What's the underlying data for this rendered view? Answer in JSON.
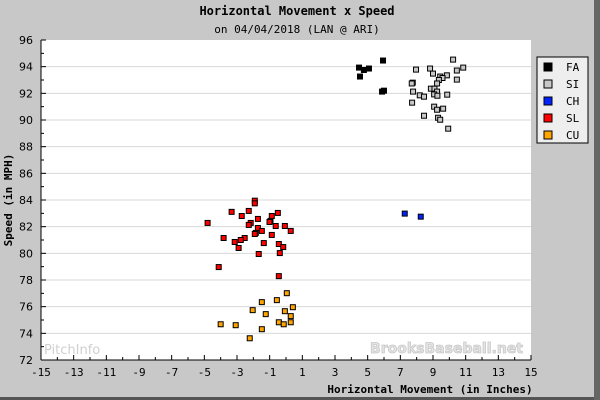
{
  "chart_data": {
    "type": "scatter",
    "title": "Horizontal Movement x Speed",
    "subtitle": "on 04/04/2018 (LAN @ ARI)",
    "xlabel": "Horizontal Movement (in Inches)",
    "ylabel": "Speed (in MPH)",
    "xlim": [
      -15,
      15
    ],
    "ylim": [
      72,
      96
    ],
    "xticks": [
      -15,
      -13,
      -11,
      -9,
      -7,
      -5,
      -3,
      -1,
      1,
      3,
      5,
      7,
      9,
      11,
      13,
      15
    ],
    "yticks": [
      72,
      74,
      76,
      78,
      80,
      82,
      84,
      86,
      88,
      90,
      92,
      94,
      96
    ],
    "grid": "horizontal",
    "legend_position": "right",
    "watermarks": [
      "PitchInfo",
      "BrooksBaseball.net"
    ],
    "series": [
      {
        "name": "FA",
        "color": "#000000",
        "points": [
          [
            4.47,
            93.93
          ],
          [
            4.77,
            93.75
          ],
          [
            5.08,
            93.86
          ],
          [
            4.53,
            93.26
          ],
          [
            5.94,
            94.46
          ],
          [
            5.88,
            92.13
          ],
          [
            6.0,
            92.2
          ]
        ]
      },
      {
        "name": "SI",
        "color": "#c8c8c8",
        "points": [
          [
            10.23,
            94.53
          ],
          [
            10.85,
            93.93
          ],
          [
            10.46,
            93.71
          ],
          [
            8.82,
            93.86
          ],
          [
            7.96,
            93.78
          ],
          [
            9.0,
            93.48
          ],
          [
            9.44,
            93.26
          ],
          [
            9.85,
            93.35
          ],
          [
            9.58,
            93.15
          ],
          [
            9.36,
            93.0
          ],
          [
            10.46,
            93.03
          ],
          [
            7.76,
            92.8
          ],
          [
            7.7,
            92.74
          ],
          [
            9.25,
            92.74
          ],
          [
            8.87,
            92.35
          ],
          [
            9.09,
            92.35
          ],
          [
            7.78,
            92.13
          ],
          [
            9.25,
            92.13
          ],
          [
            8.19,
            91.85
          ],
          [
            8.45,
            91.75
          ],
          [
            9.07,
            91.92
          ],
          [
            9.27,
            91.82
          ],
          [
            9.87,
            91.9
          ],
          [
            7.72,
            91.3
          ],
          [
            9.07,
            91.0
          ],
          [
            9.25,
            90.77
          ],
          [
            9.62,
            90.85
          ],
          [
            8.45,
            90.32
          ],
          [
            9.31,
            90.17
          ],
          [
            9.44,
            90.02
          ],
          [
            9.93,
            89.35
          ]
        ]
      },
      {
        "name": "CH",
        "color": "#0022ff",
        "points": [
          [
            7.27,
            82.98
          ],
          [
            8.25,
            82.75
          ]
        ]
      },
      {
        "name": "SL",
        "color": "#ff0000",
        "points": [
          [
            -1.91,
            83.95
          ],
          [
            -1.91,
            83.75
          ],
          [
            -3.33,
            83.11
          ],
          [
            -2.28,
            83.18
          ],
          [
            -2.71,
            82.8
          ],
          [
            -0.5,
            83.03
          ],
          [
            -0.87,
            82.8
          ],
          [
            -1.72,
            82.58
          ],
          [
            -0.95,
            82.43
          ],
          [
            -1.01,
            82.35
          ],
          [
            -2.16,
            82.28
          ],
          [
            -2.28,
            82.13
          ],
          [
            -0.63,
            82.05
          ],
          [
            -0.07,
            82.05
          ],
          [
            -4.8,
            82.28
          ],
          [
            -1.72,
            81.9
          ],
          [
            -1.48,
            81.68
          ],
          [
            0.29,
            81.68
          ],
          [
            -1.85,
            81.53
          ],
          [
            -1.91,
            81.45
          ],
          [
            -0.87,
            81.38
          ],
          [
            -3.82,
            81.15
          ],
          [
            -2.53,
            81.15
          ],
          [
            -2.77,
            81.0
          ],
          [
            -3.14,
            80.85
          ],
          [
            -1.36,
            80.77
          ],
          [
            -0.44,
            80.7
          ],
          [
            -2.9,
            80.4
          ],
          [
            -0.17,
            80.47
          ],
          [
            -1.67,
            79.95
          ],
          [
            -0.38,
            80.02
          ],
          [
            -4.12,
            78.97
          ],
          [
            -0.44,
            78.29
          ]
        ]
      },
      {
        "name": "CU",
        "color": "#ffa500",
        "points": [
          [
            0.05,
            77.01
          ],
          [
            -1.48,
            76.34
          ],
          [
            -0.56,
            76.49
          ],
          [
            0.42,
            75.96
          ],
          [
            -2.04,
            75.74
          ],
          [
            -1.24,
            75.44
          ],
          [
            -0.07,
            75.66
          ],
          [
            0.29,
            75.29
          ],
          [
            -4.0,
            74.68
          ],
          [
            -3.08,
            74.61
          ],
          [
            -0.44,
            74.83
          ],
          [
            -0.14,
            74.68
          ],
          [
            0.29,
            74.83
          ],
          [
            -1.48,
            74.31
          ],
          [
            -2.22,
            73.63
          ]
        ]
      }
    ]
  }
}
